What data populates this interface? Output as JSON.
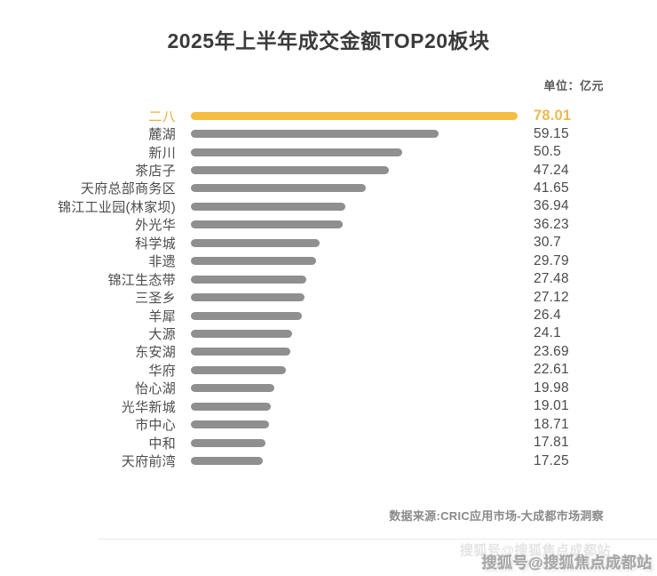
{
  "title": "2025年上半年成交金额TOP20板块",
  "unit_label": "单位：亿元",
  "source_note": "数据来源:CRIC应用市场-大成都市场洞察",
  "watermark": "搜狐号@搜狐焦点成都站",
  "colors": {
    "highlight_bar": "#f6be40",
    "highlight_text": "#e9ba4e",
    "bar_gray": "#8f8f8f",
    "title_text": "#3b3b3b",
    "label_text": "#4c4c4c"
  },
  "chart_data": {
    "type": "bar",
    "orientation": "horizontal",
    "title": "2025年上半年成交金额TOP20板块",
    "unit": "亿元",
    "xlabel": "",
    "ylabel": "",
    "xlim": [
      0,
      78.01
    ],
    "grid": false,
    "legend": false,
    "highlight_index": 0,
    "categories": [
      "二八",
      "麓湖",
      "新川",
      "茶店子",
      "天府总部商务区",
      "锦江工业园(林家坝)",
      "外光华",
      "科学城",
      "非遗",
      "锦江生态带",
      "三圣乡",
      "羊犀",
      "大源",
      "东安湖",
      "华府",
      "怡心湖",
      "光华新城",
      "市中心",
      "中和",
      "天府前湾"
    ],
    "values": [
      78.01,
      59.15,
      50.5,
      47.24,
      41.65,
      36.94,
      36.23,
      30.7,
      29.79,
      27.48,
      27.12,
      26.4,
      24.1,
      23.69,
      22.61,
      19.98,
      19.01,
      18.71,
      17.81,
      17.25
    ]
  }
}
